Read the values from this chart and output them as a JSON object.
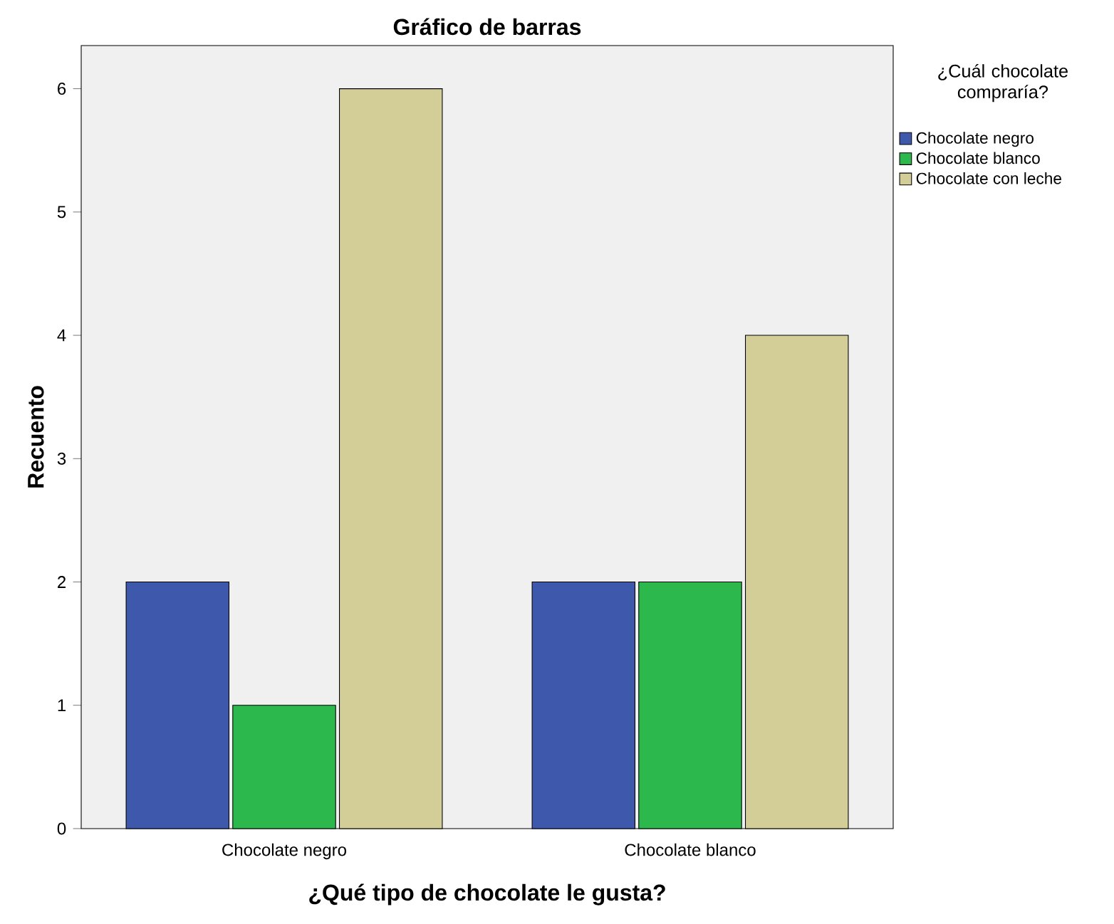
{
  "chart_data": {
    "type": "bar",
    "title": "Gráfico de barras",
    "xlabel": "¿Qué tipo de chocolate le gusta?",
    "ylabel": "Recuento",
    "legend_title": "¿Cuál chocolate compraría?",
    "categories": [
      "Chocolate negro",
      "Chocolate blanco"
    ],
    "series": [
      {
        "name": "Chocolate negro",
        "color": "#3e58ac",
        "values": [
          2,
          2
        ]
      },
      {
        "name": "Chocolate blanco",
        "color": "#2db84d",
        "values": [
          1,
          2
        ]
      },
      {
        "name": "Chocolate con leche",
        "color": "#d3ce97",
        "values": [
          6,
          4
        ]
      }
    ],
    "ylim": [
      0,
      6.35
    ],
    "yticks": [
      0,
      1,
      2,
      3,
      4,
      5,
      6
    ],
    "legend": "top right"
  }
}
